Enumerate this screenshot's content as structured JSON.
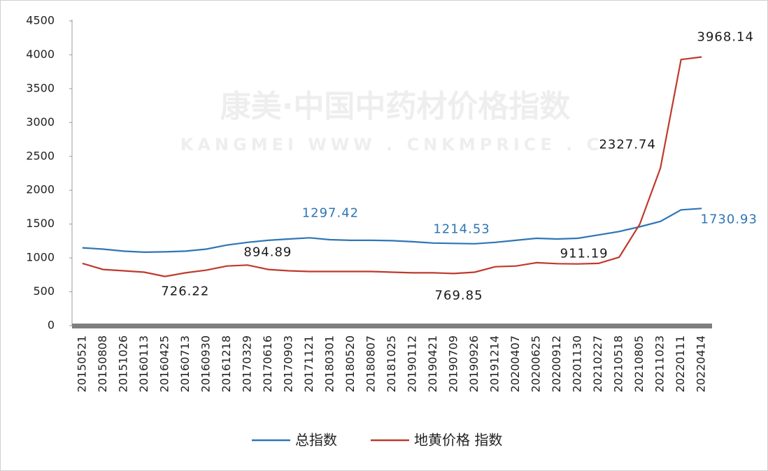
{
  "chart_data": {
    "type": "line",
    "watermark": [
      "康美·中国中药材价格指数",
      "KANGMEI WWW . CNKMPRICE . C"
    ],
    "categories": [
      "20150521",
      "20150808",
      "20151026",
      "20160113",
      "20160425",
      "20160713",
      "20160930",
      "20161218",
      "20170329",
      "20170616",
      "20170903",
      "20171121",
      "20180301",
      "20180520",
      "20180807",
      "20181025",
      "20190112",
      "20190421",
      "20190709",
      "20190926",
      "20191214",
      "20200407",
      "20200625",
      "20200912",
      "20201130",
      "20210227",
      "20210518",
      "20210805",
      "20211023",
      "20220111",
      "20220414"
    ],
    "series": [
      {
        "name": "总指数",
        "color": "#2e75b6",
        "label_color": "#2e75b6",
        "values": [
          1150,
          1130,
          1100,
          1085,
          1090,
          1100,
          1130,
          1190,
          1230,
          1260,
          1280,
          1297.42,
          1270,
          1260,
          1260,
          1255,
          1240,
          1220,
          1214.53,
          1210,
          1230,
          1260,
          1290,
          1280,
          1290,
          1340,
          1390,
          1460,
          1540,
          1710,
          1730.93
        ],
        "labels": [
          {
            "x": "20171121",
            "value": 1297.42
          },
          {
            "x": "20190709",
            "value": 1214.53
          },
          {
            "x": "20220414",
            "value": 1730.93
          }
        ]
      },
      {
        "name": "地黄价格 指数",
        "color": "#c0392b",
        "label_color": "#1a1a1a",
        "values": [
          920,
          830,
          810,
          790,
          726.22,
          780,
          820,
          880,
          894.89,
          830,
          810,
          800,
          800,
          800,
          800,
          790,
          780,
          780,
          769.85,
          790,
          870,
          880,
          930,
          915,
          911.19,
          920,
          1010,
          1500,
          2327.74,
          3930,
          3968.14
        ],
        "labels": [
          {
            "x": "20160425",
            "value": 726.22
          },
          {
            "x": "20170329",
            "value": 894.89
          },
          {
            "x": "20190709",
            "value": 769.85
          },
          {
            "x": "20201130",
            "value": 911.19
          },
          {
            "x": "20211023",
            "value": 2327.74
          },
          {
            "x": "20220414",
            "value": 3968.14
          }
        ]
      }
    ],
    "ylim": [
      0,
      4500
    ],
    "yticks": [
      0,
      500,
      1000,
      1500,
      2000,
      2500,
      3000,
      3500,
      4000,
      4500
    ],
    "grid": false
  }
}
